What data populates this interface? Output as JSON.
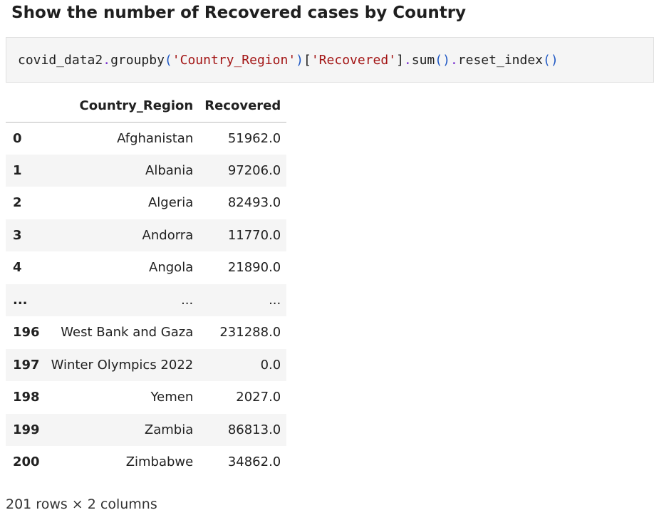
{
  "heading": "Show the number of Recovered cases by Country",
  "code": {
    "segments": [
      {
        "text": "covid_data2",
        "cls": ""
      },
      {
        "text": ".",
        "cls": "tok-op"
      },
      {
        "text": "groupby",
        "cls": ""
      },
      {
        "text": "(",
        "cls": "tok-paren"
      },
      {
        "text": "'Country_Region'",
        "cls": "tok-str"
      },
      {
        "text": ")",
        "cls": "tok-paren"
      },
      {
        "text": "[",
        "cls": ""
      },
      {
        "text": "'Recovered'",
        "cls": "tok-str"
      },
      {
        "text": "]",
        "cls": ""
      },
      {
        "text": ".",
        "cls": "tok-op"
      },
      {
        "text": "sum",
        "cls": ""
      },
      {
        "text": "()",
        "cls": "tok-paren"
      },
      {
        "text": ".",
        "cls": "tok-op"
      },
      {
        "text": "reset_index",
        "cls": ""
      },
      {
        "text": "()",
        "cls": "tok-paren"
      }
    ]
  },
  "table": {
    "index_header": "",
    "columns": [
      "Country_Region",
      "Recovered"
    ],
    "rows": [
      {
        "index": "0",
        "country": "Afghanistan",
        "recovered": "51962.0"
      },
      {
        "index": "1",
        "country": "Albania",
        "recovered": "97206.0"
      },
      {
        "index": "2",
        "country": "Algeria",
        "recovered": "82493.0"
      },
      {
        "index": "3",
        "country": "Andorra",
        "recovered": "11770.0"
      },
      {
        "index": "4",
        "country": "Angola",
        "recovered": "21890.0"
      },
      {
        "index": "...",
        "country": "...",
        "recovered": "..."
      },
      {
        "index": "196",
        "country": "West Bank and Gaza",
        "recovered": "231288.0"
      },
      {
        "index": "197",
        "country": "Winter Olympics 2022",
        "recovered": "0.0"
      },
      {
        "index": "198",
        "country": "Yemen",
        "recovered": "2027.0"
      },
      {
        "index": "199",
        "country": "Zambia",
        "recovered": "86813.0"
      },
      {
        "index": "200",
        "country": "Zimbabwe",
        "recovered": "34862.0"
      }
    ]
  },
  "footer": "201 rows × 2 columns"
}
